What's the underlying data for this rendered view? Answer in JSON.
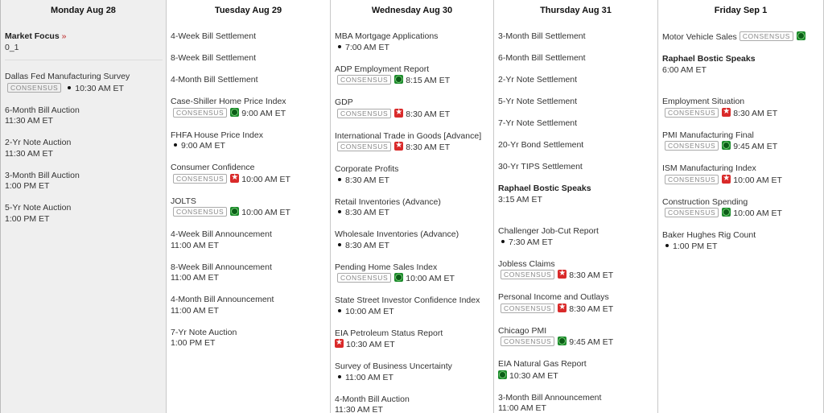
{
  "colors": {
    "today_bg": "#efefef",
    "green_icon": "#1a8a2a",
    "red_icon": "#d92a2a"
  },
  "days": [
    {
      "label": "Monday Aug 28",
      "today": true,
      "items": [
        {
          "title": "Market Focus",
          "link": "»",
          "time": "0_1",
          "type": "focus"
        },
        {
          "title": "Dallas Fed Manufacturing Survey",
          "consensus": true,
          "icon": "dot",
          "time": "10:30 AM ET"
        },
        {
          "title": "6-Month Bill Auction",
          "time": "11:30 AM ET"
        },
        {
          "title": "2-Yr Note Auction",
          "time": "11:30 AM ET"
        },
        {
          "title": "3-Month Bill Auction",
          "time": "1:00 PM ET"
        },
        {
          "title": "5-Yr Note Auction",
          "time": "1:00 PM ET"
        }
      ]
    },
    {
      "label": "Tuesday Aug 29",
      "items": [
        {
          "title": "4-Week Bill Settlement"
        },
        {
          "title": "8-Week Bill Settlement"
        },
        {
          "title": "4-Month Bill Settlement"
        },
        {
          "title": "Case-Shiller Home Price Index",
          "consensus": true,
          "icon": "green",
          "time": "9:00 AM ET"
        },
        {
          "title": "FHFA House Price Index",
          "icon": "dot",
          "time": "9:00 AM ET"
        },
        {
          "title": "Consumer Confidence",
          "consensus": true,
          "icon": "red",
          "time": "10:00 AM ET"
        },
        {
          "title": "JOLTS",
          "consensus": true,
          "icon": "green",
          "time": "10:00 AM ET"
        },
        {
          "title": "4-Week Bill Announcement",
          "time": "11:00 AM ET"
        },
        {
          "title": "8-Week Bill Announcement",
          "time": "11:00 AM ET"
        },
        {
          "title": "4-Month Bill Announcement",
          "time": "11:00 AM ET"
        },
        {
          "title": "7-Yr Note Auction",
          "time": "1:00 PM ET"
        }
      ]
    },
    {
      "label": "Wednesday Aug 30",
      "items": [
        {
          "title": "MBA Mortgage Applications",
          "icon": "dot",
          "time": "7:00 AM ET"
        },
        {
          "title": "ADP Employment Report",
          "consensus": true,
          "icon": "green",
          "time": "8:15 AM ET"
        },
        {
          "title": "GDP",
          "consensus": true,
          "icon": "red",
          "time": "8:30 AM ET"
        },
        {
          "title": "International Trade in Goods [Advance]",
          "consensus": true,
          "icon": "red",
          "time": "8:30 AM ET"
        },
        {
          "title": "Corporate Profits",
          "icon": "dot",
          "time": "8:30 AM ET"
        },
        {
          "title": "Retail Inventories (Advance)",
          "icon": "dot",
          "time": "8:30 AM ET"
        },
        {
          "title": "Wholesale Inventories (Advance)",
          "icon": "dot",
          "time": "8:30 AM ET"
        },
        {
          "title": "Pending Home Sales Index",
          "consensus": true,
          "icon": "green",
          "time": "10:00 AM ET"
        },
        {
          "title": "State Street Investor Confidence Index",
          "icon": "dot",
          "time": "10:00 AM ET"
        },
        {
          "title": "EIA Petroleum Status Report",
          "icon": "red",
          "time": "10:30 AM ET"
        },
        {
          "title": "Survey of Business Uncertainty",
          "icon": "dot",
          "time": "11:00 AM ET"
        },
        {
          "title": "4-Month Bill Auction",
          "time": "11:30 AM ET"
        }
      ]
    },
    {
      "label": "Thursday Aug 31",
      "items": [
        {
          "title": "3-Month Bill Settlement"
        },
        {
          "title": "6-Month Bill Settlement"
        },
        {
          "title": "2-Yr Note Settlement"
        },
        {
          "title": "5-Yr Note Settlement"
        },
        {
          "title": "7-Yr Note Settlement"
        },
        {
          "title": "20-Yr Bond Settlement"
        },
        {
          "title": "30-Yr TIPS Settlement"
        },
        {
          "title": "Raphael Bostic Speaks",
          "time": "3:15 AM ET",
          "type": "speaker"
        },
        {
          "title": "Challenger Job-Cut Report",
          "icon": "dot",
          "time": "7:30 AM ET"
        },
        {
          "title": "Jobless Claims",
          "consensus": true,
          "icon": "red",
          "time": "8:30 AM ET"
        },
        {
          "title": "Personal Income and Outlays",
          "consensus": true,
          "icon": "red",
          "time": "8:30 AM ET"
        },
        {
          "title": "Chicago PMI",
          "consensus": true,
          "icon": "green",
          "time": "9:45 AM ET"
        },
        {
          "title": "EIA Natural Gas Report",
          "icon": "green",
          "time": "10:30 AM ET"
        },
        {
          "title": "3-Month Bill Announcement",
          "time": "11:00 AM ET"
        }
      ]
    },
    {
      "label": "Friday Sep 1",
      "items": [
        {
          "title": "Motor Vehicle Sales",
          "consensus": true,
          "icon": "green",
          "inline": true
        },
        {
          "title": "Raphael Bostic Speaks",
          "time": "6:00 AM ET",
          "type": "speaker"
        },
        {
          "title": "Employment Situation",
          "consensus": true,
          "icon": "red",
          "time": "8:30 AM ET"
        },
        {
          "title": "PMI Manufacturing Final",
          "consensus": true,
          "icon": "green",
          "time": "9:45 AM ET"
        },
        {
          "title": "ISM Manufacturing Index",
          "consensus": true,
          "icon": "red",
          "time": "10:00 AM ET"
        },
        {
          "title": "Construction Spending",
          "consensus": true,
          "icon": "green",
          "time": "10:00 AM ET"
        },
        {
          "title": "Baker Hughes Rig Count",
          "icon": "dot",
          "time": "1:00 PM ET"
        }
      ]
    }
  ],
  "consensus_label": "CONSENSUS"
}
